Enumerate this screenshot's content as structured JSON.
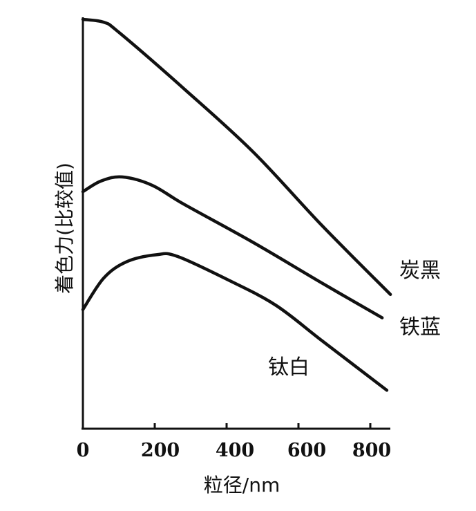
{
  "chart_data": {
    "type": "line",
    "title": "",
    "xlabel": "粒径/nm",
    "ylabel": "着色力(比较值)",
    "xlim": [
      0,
      850
    ],
    "ylim": [
      0,
      100
    ],
    "xticks": [
      "0",
      "200",
      "400",
      "600",
      "800"
    ],
    "xtick_values": [
      0,
      200,
      400,
      600,
      800
    ],
    "grid": false,
    "series": [
      {
        "name": "炭黑",
        "x": [
          0,
          58,
          102,
          282,
          474,
          667,
          856
        ],
        "y": [
          100,
          99.3,
          96.7,
          83,
          67.6,
          49.5,
          32.8
        ]
      },
      {
        "name": "铁蓝",
        "x": [
          0,
          50,
          109,
          192,
          282,
          474,
          667,
          833
        ],
        "y": [
          57.9,
          60.5,
          61.5,
          59.5,
          54.8,
          45.5,
          35.5,
          27.1
        ]
      },
      {
        "name": "钛白",
        "x": [
          0,
          58,
          122,
          205,
          263,
          410,
          538,
          667,
          846
        ],
        "y": [
          29.1,
          36.8,
          40.8,
          42.5,
          42.1,
          36.1,
          30.1,
          21.4,
          9.4
        ]
      }
    ]
  }
}
